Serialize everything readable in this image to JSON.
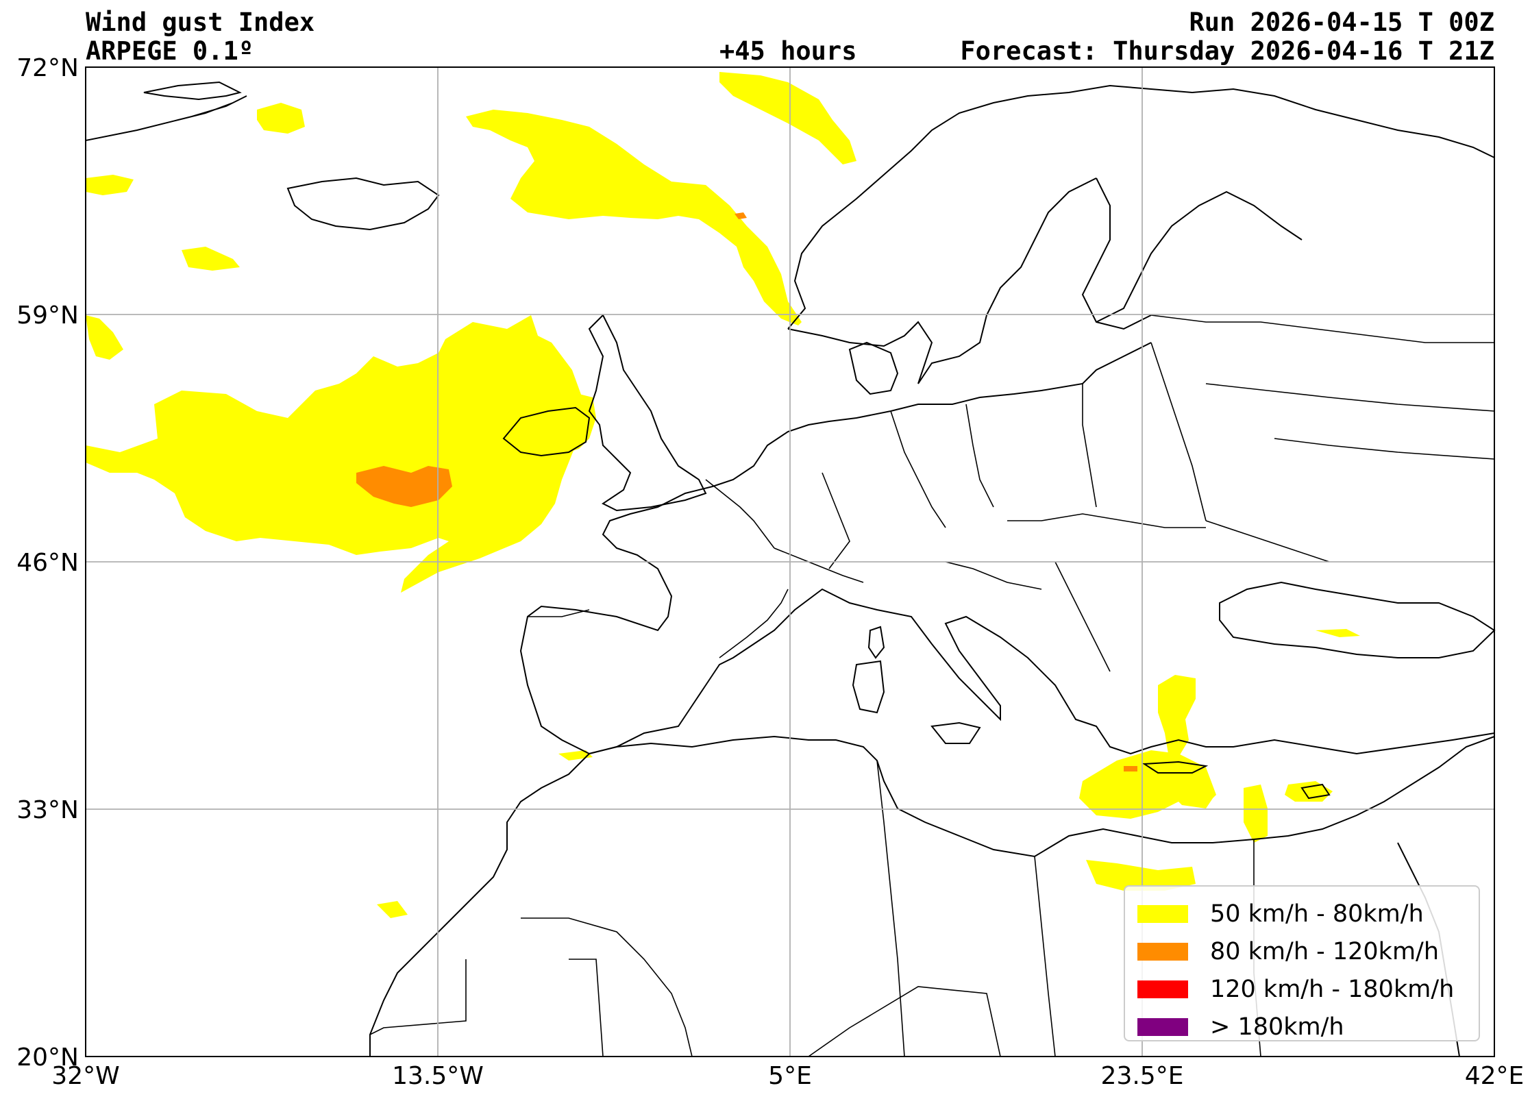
{
  "header": {
    "title": "Wind gust Index",
    "model": "ARPEGE 0.1º",
    "run": "Run 2026-04-15 T 00Z",
    "lead": "+45 hours",
    "forecast": "Forecast: Thursday 2026-04-16 T 21Z"
  },
  "axes": {
    "lon_range": [
      -32,
      42
    ],
    "lat_range": [
      20,
      72
    ],
    "x_ticks": [
      "32°W",
      "13.5°W",
      "5°E",
      "23.5°E",
      "42°E"
    ],
    "y_ticks": [
      "72°N",
      "59°N",
      "46°N",
      "33°N",
      "20°N"
    ],
    "grid": true
  },
  "legend": {
    "placement": "bottom-right",
    "items": [
      {
        "label": "50 km/h - 80km/h",
        "color": "#ffff00"
      },
      {
        "label": "80 km/h - 120km/h",
        "color": "#ff8c00"
      },
      {
        "label": "120 km/h - 180km/h",
        "color": "#ff0000"
      },
      {
        "label": "> 180km/h",
        "color": "#800080"
      }
    ]
  },
  "colors": {
    "gust_50_80": "#ffff00",
    "gust_80_120": "#ff8c00",
    "coastline": "#000000",
    "grid": "#b0b0b0"
  }
}
